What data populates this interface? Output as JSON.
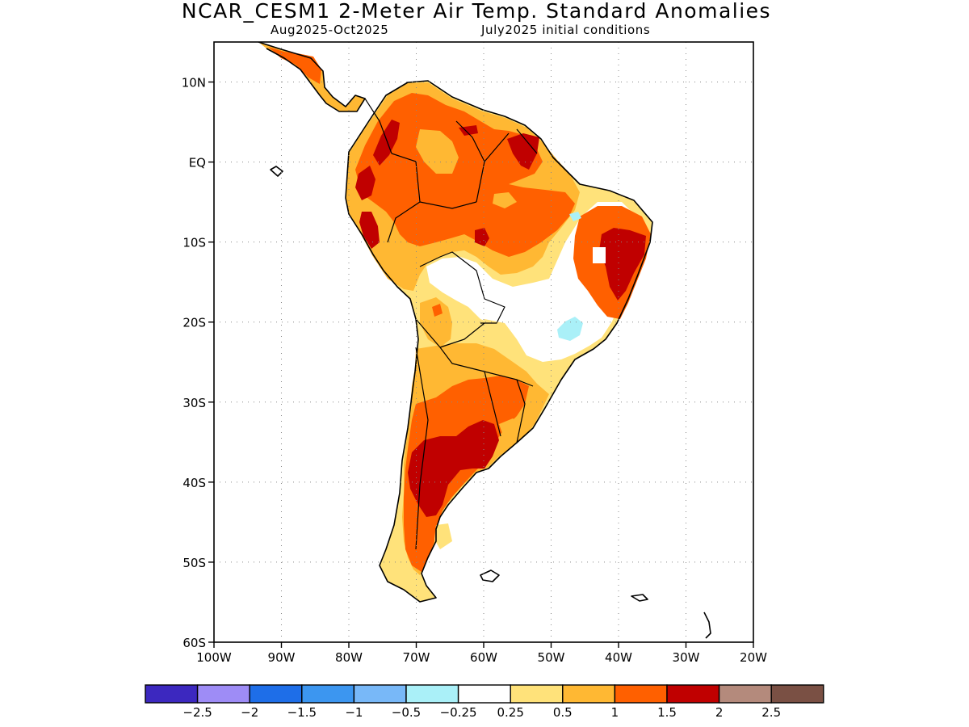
{
  "header": {
    "title": "NCAR_CESM1 2-Meter Air Temp. Standard Anomalies",
    "period": "Aug2025-Oct2025",
    "init": "July2025 initial conditions"
  },
  "map": {
    "lon_range": [
      -100,
      -20
    ],
    "lat_range": [
      -60,
      15
    ],
    "lat_ticks": [
      {
        "value": 10,
        "label": "10N"
      },
      {
        "value": 0,
        "label": "EQ"
      },
      {
        "value": -10,
        "label": "10S"
      },
      {
        "value": -20,
        "label": "20S"
      },
      {
        "value": -30,
        "label": "30S"
      },
      {
        "value": -40,
        "label": "40S"
      },
      {
        "value": -50,
        "label": "50S"
      },
      {
        "value": -60,
        "label": "60S"
      }
    ],
    "lon_ticks": [
      {
        "value": -100,
        "label": "100W"
      },
      {
        "value": -90,
        "label": "90W"
      },
      {
        "value": -80,
        "label": "80W"
      },
      {
        "value": -70,
        "label": "70W"
      },
      {
        "value": -60,
        "label": "60W"
      },
      {
        "value": -50,
        "label": "50W"
      },
      {
        "value": -40,
        "label": "40W"
      },
      {
        "value": -30,
        "label": "30W"
      },
      {
        "value": -20,
        "label": "20W"
      }
    ],
    "grid": "dotted",
    "anomaly_regions": [
      {
        "name": "northern-south-america",
        "level": 1,
        "color": "#ffb833"
      },
      {
        "name": "amazon-core",
        "level": 1.5,
        "color": "#ff6000"
      },
      {
        "name": "northeast-brazil",
        "level": 2,
        "color": "#c00000"
      },
      {
        "name": "central-argentina",
        "level": 2,
        "color": "#c00000"
      },
      {
        "name": "central-brazil",
        "level": 0,
        "color": "#ffffff"
      },
      {
        "name": "southeast-brazil-cool",
        "level": -0.25,
        "color": "#aaf0f8"
      }
    ]
  },
  "colorbar": {
    "colors": [
      "#3c28bf",
      "#9e8cf6",
      "#1e6ee8",
      "#3c96f0",
      "#78b8f8",
      "#aaf0f8",
      "#ffffff",
      "#ffe27a",
      "#ffb833",
      "#ff6000",
      "#c00000",
      "#b48a7c",
      "#7a5044"
    ],
    "labels": [
      "-2.5",
      "-2",
      "-1.5",
      "-1",
      "-0.5",
      "-0.25",
      "0.25",
      "0.5",
      "1",
      "1.5",
      "2",
      "2.5"
    ]
  }
}
